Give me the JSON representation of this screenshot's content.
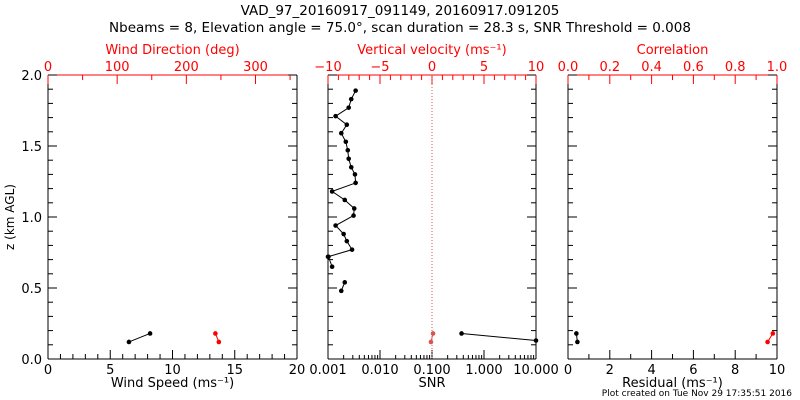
{
  "title": {
    "line1": "VAD_97_20160917_091149, 20160917.091205",
    "line2": "Nbeams = 8, Elevation angle = 75.0°, scan duration = 28.3 s, SNR Threshold = 0.008"
  },
  "footer": "Plot created on Tue Nov 29 17:35:51 2016",
  "colors": {
    "axis": "#000000",
    "secondary": "#ff0000",
    "zero_line": "#d9534f"
  },
  "chart_data": [
    {
      "type": "line",
      "panel": "left",
      "ylabel": "z (km AGL)",
      "ylim": [
        0,
        2.0
      ],
      "yticks": [
        "0.0",
        "0.5",
        "1.0",
        "1.5",
        "2.0"
      ],
      "x_bottom": {
        "label": "Wind Speed (ms⁻¹)",
        "lim": [
          0,
          20
        ],
        "ticks": [
          "0",
          "5",
          "10",
          "15",
          "20"
        ]
      },
      "x_top": {
        "label": "Wind Direction (deg)",
        "lim": [
          0,
          360
        ],
        "ticks": [
          "0",
          "100",
          "200",
          "300"
        ]
      },
      "series": [
        {
          "axis": "bottom",
          "color": "#000000",
          "x": [
            6.5,
            8.2
          ],
          "y": [
            0.12,
            0.18
          ]
        },
        {
          "axis": "top",
          "color": "#ff0000",
          "x": [
            247,
            242
          ],
          "y": [
            0.12,
            0.18
          ]
        }
      ]
    },
    {
      "type": "line",
      "panel": "middle",
      "ylim": [
        0,
        2.0
      ],
      "x_bottom": {
        "label": "SNR",
        "scale": "log",
        "lim": [
          0.001,
          10
        ],
        "ticks": [
          "0.001",
          "0.010",
          "0.100",
          "1.000",
          "10.000"
        ]
      },
      "x_top": {
        "label": "Vertical velocity (ms⁻¹)",
        "lim": [
          -10,
          10
        ],
        "ticks": [
          "−10",
          "−5",
          "0",
          "5",
          "10"
        ]
      },
      "vertical_reference": {
        "axis": "top",
        "x": 0,
        "style": "dotted"
      },
      "series": [
        {
          "axis": "bottom",
          "color": "#000000",
          "x": [
            0.37,
            10
          ],
          "y": [
            0.18,
            0.13
          ]
        },
        {
          "axis": "bottom",
          "color": "#000000",
          "x": [
            0.0018,
            0.0021
          ],
          "y": [
            0.48,
            0.54
          ]
        },
        {
          "axis": "bottom",
          "color": "#000000",
          "x": [
            0.0012,
            0.00102
          ],
          "y": [
            0.65,
            0.72
          ]
        },
        {
          "axis": "bottom",
          "color": "#000000",
          "x": [
            0.001,
            0.0029,
            0.0023,
            0.002,
            0.0014,
            0.0031,
            0.0032,
            0.0021,
            0.0012,
            0.0034,
            0.0033,
            0.0028,
            0.0025,
            0.0024,
            0.0022,
            0.0018,
            0.0023,
            0.0014,
            0.0025,
            0.0028,
            0.0034
          ],
          "y": [
            0.72,
            0.77,
            0.83,
            0.88,
            0.94,
            1.01,
            1.06,
            1.12,
            1.18,
            1.24,
            1.3,
            1.35,
            1.41,
            1.47,
            1.53,
            1.59,
            1.65,
            1.71,
            1.77,
            1.83,
            1.89
          ]
        },
        {
          "axis": "top",
          "color": "#d9534f",
          "x": [
            -0.1,
            0.1
          ],
          "y": [
            0.12,
            0.18
          ]
        }
      ]
    },
    {
      "type": "line",
      "panel": "right",
      "ylim": [
        0,
        2.0
      ],
      "x_bottom": {
        "label": "Residual (ms⁻¹)",
        "lim": [
          0,
          10
        ],
        "ticks": [
          "0",
          "2",
          "4",
          "6",
          "8",
          "10"
        ]
      },
      "x_top": {
        "label": "Correlation",
        "lim": [
          0,
          1.0
        ],
        "ticks": [
          "0.0",
          "0.2",
          "0.4",
          "0.6",
          "0.8",
          "1.0"
        ]
      },
      "series": [
        {
          "axis": "bottom",
          "color": "#000000",
          "x": [
            0.45,
            0.4
          ],
          "y": [
            0.12,
            0.18
          ]
        },
        {
          "axis": "top",
          "color": "#ff0000",
          "x": [
            0.955,
            0.98
          ],
          "y": [
            0.12,
            0.18
          ]
        }
      ]
    }
  ]
}
